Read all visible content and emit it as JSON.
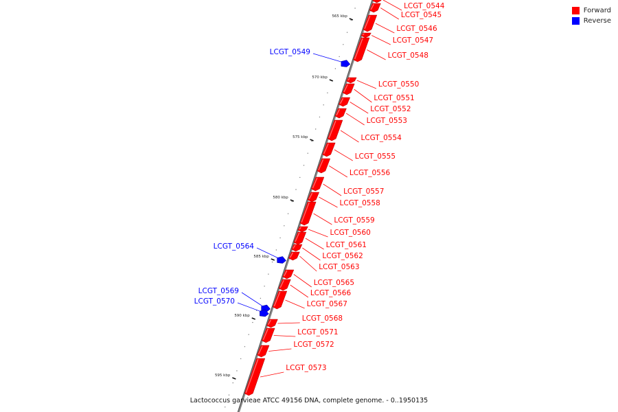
{
  "legend": {
    "forward_label": "Forward",
    "reverse_label": "Reverse",
    "forward_color": "#ff0000",
    "reverse_color": "#0000ff"
  },
  "caption": "Lactococcus garvieae ATCC 49156 DNA, complete genome. - 0..1950135",
  "ticks": [
    "565 kbp",
    "570 kbp",
    "575 kbp",
    "580 kbp",
    "585 kbp",
    "590 kbp",
    "595 kbp"
  ],
  "genes": [
    {
      "name": "LCGT_0544",
      "strand": "forward"
    },
    {
      "name": "LCGT_0545",
      "strand": "forward"
    },
    {
      "name": "LCGT_0546",
      "strand": "forward"
    },
    {
      "name": "LCGT_0547",
      "strand": "forward"
    },
    {
      "name": "LCGT_0548",
      "strand": "forward"
    },
    {
      "name": "LCGT_0549",
      "strand": "reverse"
    },
    {
      "name": "LCGT_0550",
      "strand": "forward"
    },
    {
      "name": "LCGT_0551",
      "strand": "forward"
    },
    {
      "name": "LCGT_0552",
      "strand": "forward"
    },
    {
      "name": "LCGT_0553",
      "strand": "forward"
    },
    {
      "name": "LCGT_0554",
      "strand": "forward"
    },
    {
      "name": "LCGT_0555",
      "strand": "forward"
    },
    {
      "name": "LCGT_0556",
      "strand": "forward"
    },
    {
      "name": "LCGT_0557",
      "strand": "forward"
    },
    {
      "name": "LCGT_0558",
      "strand": "forward"
    },
    {
      "name": "LCGT_0559",
      "strand": "forward"
    },
    {
      "name": "LCGT_0560",
      "strand": "forward"
    },
    {
      "name": "LCGT_0561",
      "strand": "forward"
    },
    {
      "name": "LCGT_0562",
      "strand": "forward"
    },
    {
      "name": "LCGT_0563",
      "strand": "forward"
    },
    {
      "name": "LCGT_0564",
      "strand": "reverse"
    },
    {
      "name": "LCGT_0565",
      "strand": "forward"
    },
    {
      "name": "LCGT_0566",
      "strand": "forward"
    },
    {
      "name": "LCGT_0567",
      "strand": "forward"
    },
    {
      "name": "LCGT_0568",
      "strand": "forward"
    },
    {
      "name": "LCGT_0569",
      "strand": "reverse"
    },
    {
      "name": "LCGT_0570",
      "strand": "reverse"
    },
    {
      "name": "LCGT_0571",
      "strand": "forward"
    },
    {
      "name": "LCGT_0572",
      "strand": "forward"
    },
    {
      "name": "LCGT_0573",
      "strand": "forward"
    }
  ]
}
